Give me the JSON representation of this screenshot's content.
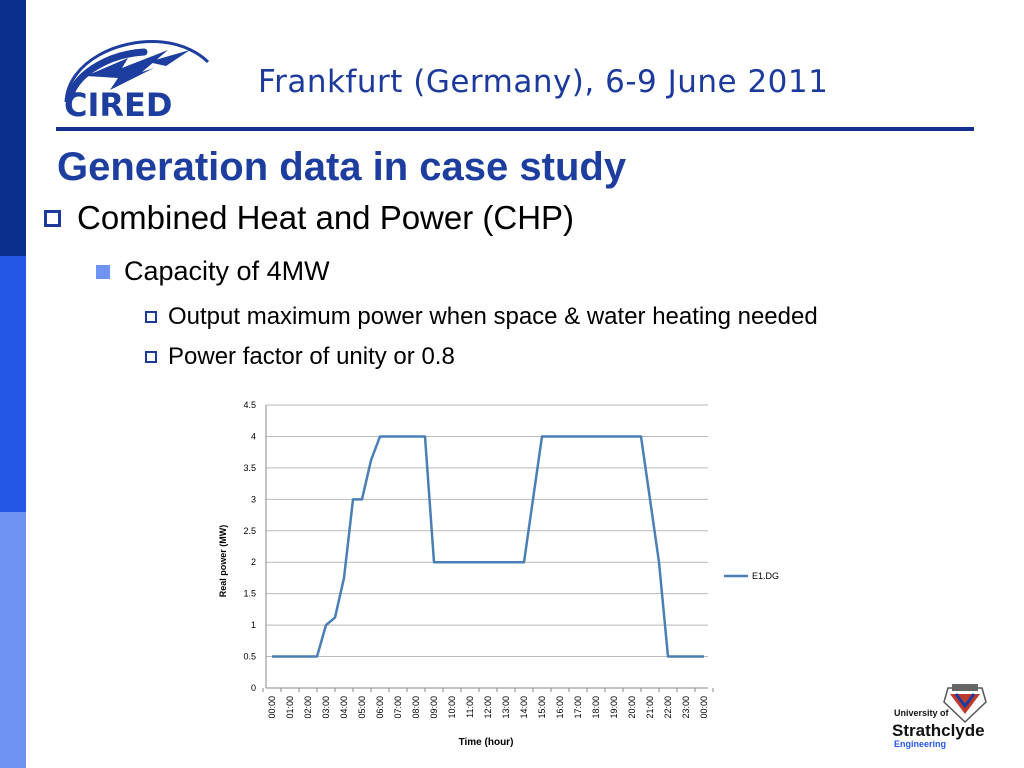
{
  "header": {
    "logo_text": "CIRED",
    "conference": "Frankfurt (Germany), 6-9 June 2011"
  },
  "slide": {
    "title": "Generation data in case study",
    "bullets": {
      "level1": "Combined Heat and Power (CHP)",
      "level2": "Capacity of 4MW",
      "level3": [
        "Output maximum power when space & water heating needed",
        "Power factor of unity or 0.8"
      ]
    }
  },
  "footer": {
    "university_logo": {
      "line1": "University of",
      "line2": "Strathclyde",
      "line3": "Engineering"
    }
  },
  "colors": {
    "navy": "#12308e",
    "title_blue": "#1d3e9f",
    "line_series": "#4a7fb5",
    "accent_light": "#6f93f2"
  },
  "chart_data": {
    "type": "line",
    "xlabel": "Time (hour)",
    "ylabel": "Real power (MW)",
    "ylim": [
      0,
      4.5
    ],
    "yticks": [
      "0",
      "0.5",
      "1",
      "1.5",
      "2",
      "2.5",
      "3",
      "3.5",
      "4",
      "4.5"
    ],
    "categories": [
      "00:00",
      "01:00",
      "02:00",
      "03:00",
      "04:00",
      "05:00",
      "06:00",
      "07:00",
      "08:00",
      "09:00",
      "10:00",
      "11:00",
      "12:00",
      "13:00",
      "14:00",
      "15:00",
      "16:00",
      "17:00",
      "18:00",
      "19:00",
      "20:00",
      "21:00",
      "22:00",
      "23:00",
      "00:00"
    ],
    "grid": true,
    "legend": "right",
    "series": [
      {
        "name": "E1.DG",
        "color": "#4a7fb5",
        "x": [
          0,
          0.5,
          1,
          1.5,
          2,
          2.5,
          3,
          3.5,
          4,
          4.5,
          5,
          5.5,
          6,
          6.5,
          7,
          7.5,
          8,
          8.5,
          9,
          9.5,
          10,
          10.5,
          11,
          11.5,
          12,
          12.5,
          13,
          13.5,
          14,
          14.5,
          15,
          15.5,
          16,
          16.5,
          17,
          17.5,
          18,
          18.5,
          19,
          19.5,
          20,
          20.5,
          21,
          21.5,
          22,
          22.5,
          23,
          23.5,
          24
        ],
        "values": [
          0.5,
          0.5,
          0.5,
          0.5,
          0.5,
          0.5,
          1.0,
          1.12,
          1.75,
          3.0,
          3.0,
          3.62,
          4.0,
          4.0,
          4.0,
          4.0,
          4.0,
          4.0,
          2.0,
          2.0,
          2.0,
          2.0,
          2.0,
          2.0,
          2.0,
          2.0,
          2.0,
          2.0,
          2.0,
          3.0,
          4.0,
          4.0,
          4.0,
          4.0,
          4.0,
          4.0,
          4.0,
          4.0,
          4.0,
          4.0,
          4.0,
          4.0,
          3.0,
          2.0,
          0.5,
          0.5,
          0.5,
          0.5,
          0.5
        ]
      }
    ]
  }
}
